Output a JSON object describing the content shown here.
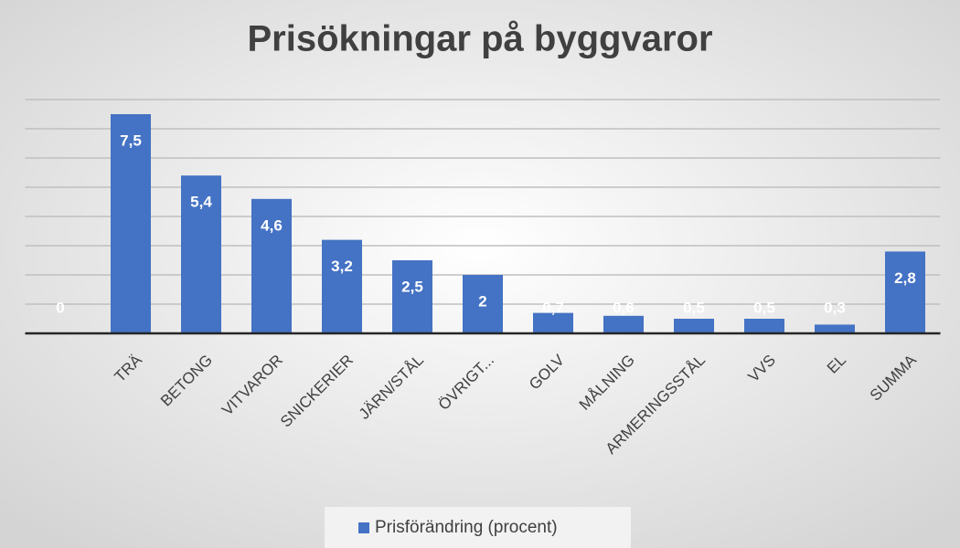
{
  "chart_data": {
    "type": "bar",
    "title": "Prisökningar på byggvaror",
    "categories": [
      null,
      "TRÄ",
      "BETONG",
      "VITVAROR",
      "SNICKERIER",
      "JÄRN/STÅL",
      "ÖVRIGT...",
      "GOLV",
      "MÅLNING",
      "ARMERINGSSTÅL",
      "VVS",
      "EL",
      "SUMMA"
    ],
    "series": [
      {
        "name": "Prisförändring (procent)",
        "color": "#4472c4",
        "values": [
          0,
          7.5,
          5.4,
          4.6,
          3.2,
          2.5,
          2,
          0.7,
          0.6,
          0.5,
          0.5,
          0.3,
          2.8
        ],
        "value_labels": [
          "0",
          "7,5",
          "5,4",
          "4,6",
          "3,2",
          "2,5",
          "2",
          "0,7",
          "0,6",
          "0,5",
          "0,5",
          "0,3",
          "2,8"
        ]
      }
    ],
    "ylim": [
      0,
      8
    ],
    "yticks": [
      0,
      1,
      2,
      3,
      4,
      5,
      6,
      7,
      8
    ],
    "grid": true,
    "legend": "bottom"
  }
}
